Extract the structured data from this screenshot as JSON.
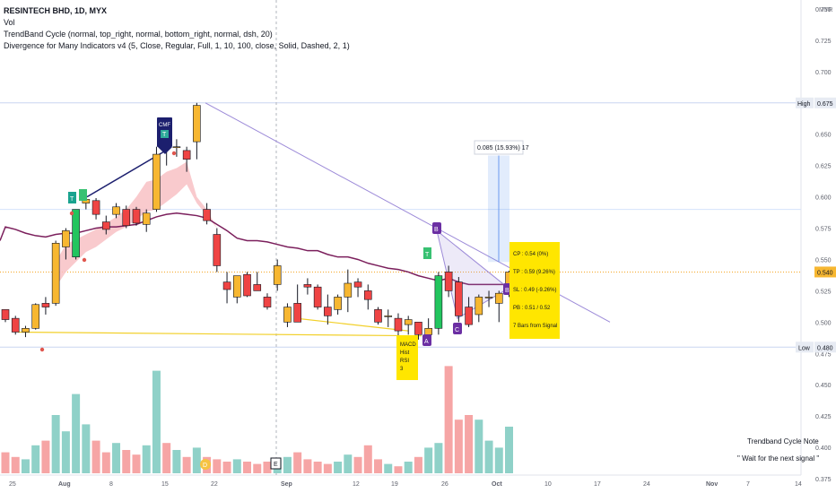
{
  "header": {
    "symbol": "RESINTECH BHD, 1D, MYX",
    "volume_label": "Vol",
    "indicator_1": "TrendBand Cycle (normal, top_right, normal, bottom_right, normal, dsh, 20)",
    "indicator_2": "Divergence for Many Indicators v4 (5, Close, Regular, Full, 1, 10, 100, close, Solid, Dashed, 2, 1)"
  },
  "colors": {
    "up": "#f7b731",
    "down": "#ef4444",
    "signal_up": "#22c55e",
    "ma": "#7b1f5c",
    "band": "#f8c1c4",
    "vol_up": "#8fd1c8",
    "vol_down": "#f6a5a5",
    "trend": "#9c8ad8",
    "yellow_box": "#ffe600"
  },
  "chart_data": {
    "type": "candlestick",
    "currency": "MYR",
    "ylim": [
      0.37,
      0.76
    ],
    "y_ticks": [
      "0.750",
      "0.725",
      "0.700",
      "0.675",
      "0.650",
      "0.625",
      "0.600",
      "0.575",
      "0.550",
      "0.525",
      "0.500",
      "0.475",
      "0.450",
      "0.425",
      "0.400",
      "0.375"
    ],
    "x_ticks": [
      "25",
      "Aug",
      "8",
      "15",
      "22",
      "Sep",
      "12",
      "19",
      "26",
      "Oct",
      "10",
      "17",
      "24",
      "Nov",
      "7",
      "14"
    ],
    "high_label": "High",
    "high_value": "0.675",
    "low_label": "Low",
    "low_value": "0.480",
    "last_price": "0.540",
    "candles": [
      {
        "o": 0.51,
        "h": 0.51,
        "l": 0.5,
        "c": 0.502,
        "v": 9
      },
      {
        "o": 0.503,
        "h": 0.505,
        "l": 0.49,
        "c": 0.492,
        "v": 7
      },
      {
        "o": 0.492,
        "h": 0.497,
        "l": 0.488,
        "c": 0.495,
        "v": 6
      },
      {
        "o": 0.495,
        "h": 0.515,
        "l": 0.494,
        "c": 0.514,
        "v": 12
      },
      {
        "o": 0.515,
        "h": 0.52,
        "l": 0.506,
        "c": 0.512,
        "v": 14
      },
      {
        "o": 0.515,
        "h": 0.565,
        "l": 0.513,
        "c": 0.563,
        "v": 25
      },
      {
        "o": 0.56,
        "h": 0.575,
        "l": 0.55,
        "c": 0.573,
        "v": 18
      },
      {
        "o": 0.552,
        "h": 0.59,
        "l": 0.55,
        "c": 0.59,
        "v": 34
      },
      {
        "o": 0.595,
        "h": 0.6,
        "l": 0.59,
        "c": 0.598,
        "v": 21
      },
      {
        "o": 0.597,
        "h": 0.599,
        "l": 0.582,
        "c": 0.586,
        "v": 14
      },
      {
        "o": 0.58,
        "h": 0.585,
        "l": 0.57,
        "c": 0.574,
        "v": 9
      },
      {
        "o": 0.586,
        "h": 0.595,
        "l": 0.583,
        "c": 0.592,
        "v": 13
      },
      {
        "o": 0.59,
        "h": 0.593,
        "l": 0.575,
        "c": 0.577,
        "v": 10
      },
      {
        "o": 0.59,
        "h": 0.592,
        "l": 0.577,
        "c": 0.579,
        "v": 8
      },
      {
        "o": 0.578,
        "h": 0.59,
        "l": 0.572,
        "c": 0.587,
        "v": 12
      },
      {
        "o": 0.59,
        "h": 0.64,
        "l": 0.588,
        "c": 0.634,
        "v": 44
      },
      {
        "o": 0.64,
        "h": 0.65,
        "l": 0.625,
        "c": 0.639,
        "v": 13
      },
      {
        "o": 0.64,
        "h": 0.646,
        "l": 0.632,
        "c": 0.64,
        "v": 10
      },
      {
        "o": 0.637,
        "h": 0.64,
        "l": 0.62,
        "c": 0.63,
        "v": 7
      },
      {
        "o": 0.644,
        "h": 0.675,
        "l": 0.63,
        "c": 0.673,
        "v": 11
      },
      {
        "o": 0.59,
        "h": 0.595,
        "l": 0.578,
        "c": 0.581,
        "v": 7
      },
      {
        "o": 0.57,
        "h": 0.575,
        "l": 0.54,
        "c": 0.545,
        "v": 6
      },
      {
        "o": 0.532,
        "h": 0.54,
        "l": 0.515,
        "c": 0.526,
        "v": 5
      },
      {
        "o": 0.52,
        "h": 0.535,
        "l": 0.515,
        "c": 0.537,
        "v": 6
      },
      {
        "o": 0.538,
        "h": 0.54,
        "l": 0.52,
        "c": 0.521,
        "v": 5
      },
      {
        "o": 0.53,
        "h": 0.54,
        "l": 0.525,
        "c": 0.525,
        "v": 4
      },
      {
        "o": 0.52,
        "h": 0.523,
        "l": 0.51,
        "c": 0.512,
        "v": 5
      },
      {
        "o": 0.53,
        "h": 0.55,
        "l": 0.525,
        "c": 0.545,
        "v": 6
      },
      {
        "o": 0.5,
        "h": 0.515,
        "l": 0.496,
        "c": 0.512,
        "v": 7
      },
      {
        "o": 0.515,
        "h": 0.53,
        "l": 0.5,
        "c": 0.5,
        "v": 9
      },
      {
        "o": 0.53,
        "h": 0.535,
        "l": 0.522,
        "c": 0.528,
        "v": 6
      },
      {
        "o": 0.528,
        "h": 0.53,
        "l": 0.51,
        "c": 0.512,
        "v": 5
      },
      {
        "o": 0.512,
        "h": 0.522,
        "l": 0.498,
        "c": 0.505,
        "v": 4
      },
      {
        "o": 0.51,
        "h": 0.522,
        "l": 0.506,
        "c": 0.52,
        "v": 5
      },
      {
        "o": 0.52,
        "h": 0.542,
        "l": 0.508,
        "c": 0.531,
        "v": 8
      },
      {
        "o": 0.532,
        "h": 0.535,
        "l": 0.52,
        "c": 0.528,
        "v": 7
      },
      {
        "o": 0.525,
        "h": 0.53,
        "l": 0.51,
        "c": 0.518,
        "v": 12
      },
      {
        "o": 0.51,
        "h": 0.512,
        "l": 0.498,
        "c": 0.5,
        "v": 6
      },
      {
        "o": 0.505,
        "h": 0.51,
        "l": 0.496,
        "c": 0.505,
        "v": 4
      },
      {
        "o": 0.503,
        "h": 0.507,
        "l": 0.48,
        "c": 0.493,
        "v": 3
      },
      {
        "o": 0.498,
        "h": 0.505,
        "l": 0.49,
        "c": 0.502,
        "v": 5
      },
      {
        "o": 0.5,
        "h": 0.5,
        "l": 0.486,
        "c": 0.49,
        "v": 7
      },
      {
        "o": 0.49,
        "h": 0.503,
        "l": 0.488,
        "c": 0.495,
        "v": 11
      },
      {
        "o": 0.495,
        "h": 0.54,
        "l": 0.49,
        "c": 0.537,
        "v": 13
      },
      {
        "o": 0.54,
        "h": 0.545,
        "l": 0.52,
        "c": 0.525,
        "v": 46
      },
      {
        "o": 0.532,
        "h": 0.536,
        "l": 0.5,
        "c": 0.505,
        "v": 23
      },
      {
        "o": 0.512,
        "h": 0.52,
        "l": 0.496,
        "c": 0.498,
        "v": 25
      },
      {
        "o": 0.506,
        "h": 0.522,
        "l": 0.5,
        "c": 0.52,
        "v": 23
      },
      {
        "o": 0.52,
        "h": 0.525,
        "l": 0.512,
        "c": 0.52,
        "v": 14
      },
      {
        "o": 0.515,
        "h": 0.525,
        "l": 0.5,
        "c": 0.523,
        "v": 11
      },
      {
        "o": 0.522,
        "h": 0.541,
        "l": 0.52,
        "c": 0.54,
        "v": 20
      }
    ],
    "signal_candles": [
      7,
      43
    ],
    "ma": [
      0.576,
      0.574,
      0.571,
      0.569,
      0.568,
      0.57,
      0.571,
      0.571,
      0.573,
      0.575,
      0.576,
      0.576,
      0.577,
      0.578,
      0.581,
      0.584,
      0.586,
      0.587,
      0.586,
      0.585,
      0.583,
      0.578,
      0.573,
      0.567,
      0.565,
      0.565,
      0.564,
      0.562,
      0.56,
      0.559,
      0.557,
      0.557,
      0.554,
      0.552,
      0.552,
      0.55,
      0.547,
      0.545,
      0.543,
      0.542,
      0.54,
      0.537,
      0.535,
      0.533,
      0.535,
      0.532,
      0.53,
      0.53,
      0.53,
      0.53,
      0.53
    ],
    "band_upper": [
      null,
      null,
      null,
      null,
      null,
      0.548,
      0.562,
      0.566,
      0.57,
      0.574,
      0.579,
      0.584,
      0.59,
      0.6,
      0.612,
      0.614,
      0.62,
      0.623,
      0.628,
      0.6,
      0.59,
      0.575
    ],
    "band_lower": [
      null,
      null,
      null,
      null,
      null,
      0.528,
      0.54,
      0.548,
      0.556,
      0.56,
      0.566,
      0.572,
      0.576,
      0.582,
      0.588,
      0.59,
      0.596,
      0.602,
      0.61,
      0.595,
      0.585,
      0.575
    ],
    "measure_label": "0.085 (15.93%) 17",
    "signal_box": [
      "CP : 0.54 (0%)",
      "TP : 0.59 (9.26%)",
      "SL : 0.49 (-9.26%)",
      "PB : 0.51 / 0.52",
      "7 Bars from Signal"
    ],
    "markers": {
      "cmf_label": "CMF",
      "t": "T",
      "c": "C",
      "b": "B",
      "a": "A",
      "diverge_label": [
        "MACD",
        "Hist",
        "RSI",
        "3"
      ],
      "sep_flag": "E",
      "earn_flag": "D"
    },
    "note_title": "Trendband Cycle Note",
    "note_text": "\" Wait for the next signal \""
  }
}
